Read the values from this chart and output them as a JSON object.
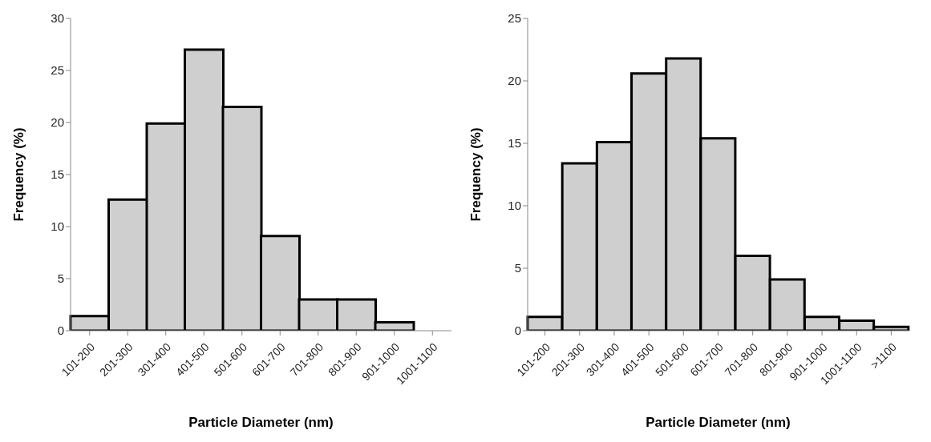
{
  "chart_data": [
    {
      "type": "bar",
      "categories": [
        "101-200",
        "201-300",
        "301-400",
        "401-500",
        "501-600",
        "601-700",
        "701-800",
        "801-900",
        "901-1000",
        "1001-1100"
      ],
      "values": [
        1.4,
        12.6,
        19.9,
        27.0,
        21.5,
        9.1,
        3.0,
        3.0,
        0.8,
        null
      ],
      "color": "#cfcfcf",
      "xlabel": "Particle Diameter (nm)",
      "ylabel": "Frequency (%)",
      "ylim": [
        0,
        30
      ],
      "yticks": [
        0,
        5,
        10,
        15,
        20,
        25,
        30
      ],
      "grid": false,
      "legend": false
    },
    {
      "type": "bar",
      "categories": [
        "101-200",
        "201-300",
        "301-400",
        "401-500",
        "501-600",
        "601-700",
        "701-800",
        "801-900",
        "901-1000",
        "1001-1100",
        ">1100"
      ],
      "values": [
        1.1,
        13.4,
        15.1,
        20.6,
        21.8,
        15.4,
        6.0,
        4.1,
        1.1,
        0.8,
        0.3
      ],
      "color": "#cfcfcf",
      "xlabel": "Particle Diameter (nm)",
      "ylabel": "Frequency (%)",
      "ylim": [
        0,
        25
      ],
      "yticks": [
        0,
        5,
        10,
        15,
        20,
        25
      ],
      "grid": false,
      "legend": false
    }
  ]
}
